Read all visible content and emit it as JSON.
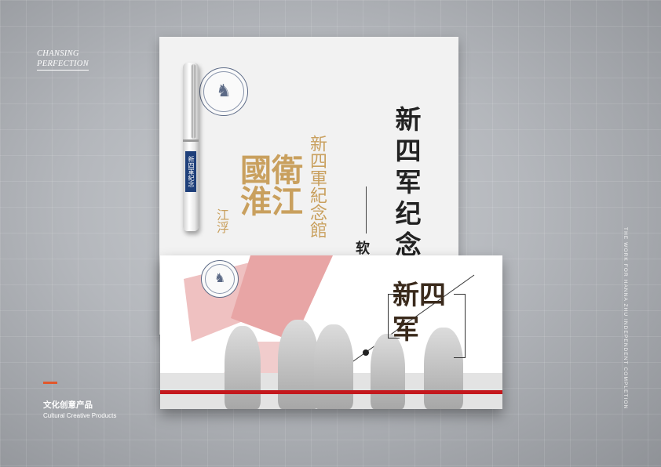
{
  "brand": {
    "line1": "CHANSING",
    "line2": "PERFECTION"
  },
  "category": {
    "cn": "文化创意产品",
    "en": "Cultural Creative Products",
    "accent": "#e2572b"
  },
  "side_caption": "THE WORK FOR HANNA ZHU INDEPENDENT COMPLETION",
  "sheet": {
    "title": "新四军纪念",
    "subtitle": "软"
  },
  "calligraphy": {
    "col1": "衛江",
    "col2": "國淮",
    "col3": "新四軍紀念館",
    "col4": "江浮"
  },
  "pen": {
    "label": "新四軍紀念"
  },
  "card": {
    "title": "新四军",
    "stripe_color": "#c4181d"
  },
  "colors": {
    "seal": "#5c6a86",
    "gold": "#c9a05e",
    "flag": "#e2a0a0"
  }
}
